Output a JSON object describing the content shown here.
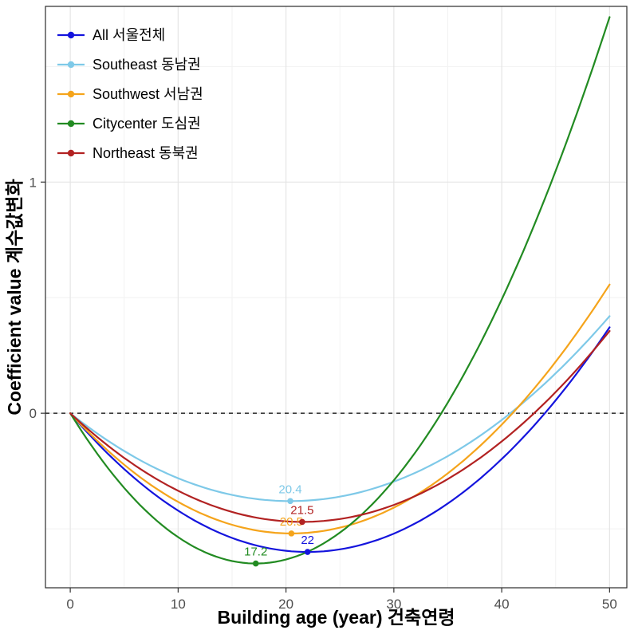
{
  "chart_data": {
    "type": "line",
    "title": "",
    "xlabel": "Building age (year) 건축연령",
    "ylabel": "Coefficient value 계수값변화",
    "xlim": [
      -2.3,
      51.6
    ],
    "ylim": [
      -0.755,
      1.76
    ],
    "x_ticks": [
      0,
      10,
      20,
      30,
      40,
      50
    ],
    "y_ticks": [
      0,
      1
    ],
    "x_minor": [
      5,
      15,
      25,
      35,
      45
    ],
    "y_minor": [
      -0.5,
      0.5,
      1.5
    ],
    "grid": true,
    "legend_position": "top-left-inside",
    "zero_line": {
      "y": 0,
      "style": "dashed",
      "color": "#000000"
    },
    "x": [
      0,
      5,
      10,
      15,
      20,
      25,
      30,
      35,
      40,
      45,
      50
    ],
    "series": [
      {
        "name": "all",
        "label": "All 서울전체",
        "color": "#1414DD",
        "min_point": {
          "x": 22,
          "y": -0.6,
          "label": "22"
        },
        "y": [
          0,
          -0.242,
          -0.421,
          -0.539,
          -0.595,
          -0.589,
          -0.521,
          -0.39,
          -0.198,
          0.056,
          0.372
        ]
      },
      {
        "name": "southeast",
        "label": "Southeast 동남권",
        "color": "#7EC9E8",
        "min_point": {
          "x": 20.4,
          "y": -0.38,
          "label": "20.4"
        },
        "y": [
          0,
          -0.163,
          -0.281,
          -0.353,
          -0.38,
          -0.361,
          -0.296,
          -0.185,
          -0.029,
          0.173,
          0.42
        ]
      },
      {
        "name": "southwest",
        "label": "Southwest 서남권",
        "color": "#F5A41B",
        "min_point": {
          "x": 20.5,
          "y": -0.52,
          "label": "20.5"
        },
        "y": [
          0,
          -0.223,
          -0.384,
          -0.483,
          -0.52,
          -0.495,
          -0.408,
          -0.26,
          -0.049,
          0.223,
          0.557
        ]
      },
      {
        "name": "citycenter",
        "label": "Citycenter 도심권",
        "color": "#228B22",
        "min_point": {
          "x": 17.2,
          "y": -0.65,
          "label": "17.2"
        },
        "y": [
          0,
          -0.323,
          -0.536,
          -0.639,
          -0.633,
          -0.516,
          -0.29,
          0.046,
          0.492,
          1.048,
          1.714
        ]
      },
      {
        "name": "northeast",
        "label": "Northeast 동북권",
        "color": "#B22222",
        "min_point": {
          "x": 21.5,
          "y": -0.47,
          "label": "21.5"
        },
        "y": [
          0,
          -0.193,
          -0.336,
          -0.427,
          -0.468,
          -0.458,
          -0.397,
          -0.285,
          -0.122,
          0.092,
          0.356
        ]
      }
    ]
  }
}
